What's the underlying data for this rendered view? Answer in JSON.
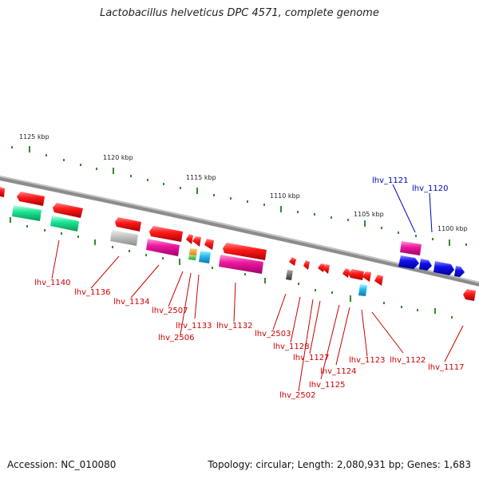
{
  "title": "Lactobacillus helveticus DPC 4571, complete genome",
  "footer": {
    "accession": "Accession: NC_010080",
    "topology": "Topology: circular; Length: 2,080,931 bp; Genes: 1,683"
  },
  "scale_labels": [
    "1125 kbp",
    "1120 kbp",
    "1115 kbp",
    "1110 kbp",
    "1105 kbp",
    "1100 kbp"
  ],
  "colors": {
    "backbone": "#8c8c8c",
    "tick": "#2e8b2e",
    "red_gene": "#ee1111",
    "pink_gene": "#e8189a",
    "teal_gene": "#19d98a",
    "gray_gene": "#bbbbbb",
    "blue_gene": "#0a0ae0",
    "cyan_gene": "#22b8ee",
    "red_label": "#cc0000",
    "blue_label": "#0000bb"
  },
  "gene_labels": {
    "red": [
      "lhv_1140",
      "lhv_1136",
      "lhv_1134",
      "lhv_2507",
      "lhv_1133",
      "lhv_2506",
      "lhv_1132",
      "lhv_2503",
      "lhv_1128",
      "lhv_1127",
      "lhv_1124",
      "lhv_1125",
      "lhv_2502",
      "lhv_1123",
      "lhv_1122",
      "lhv_1117"
    ],
    "blue": [
      "lhv_1121",
      "lhv_1120"
    ]
  }
}
